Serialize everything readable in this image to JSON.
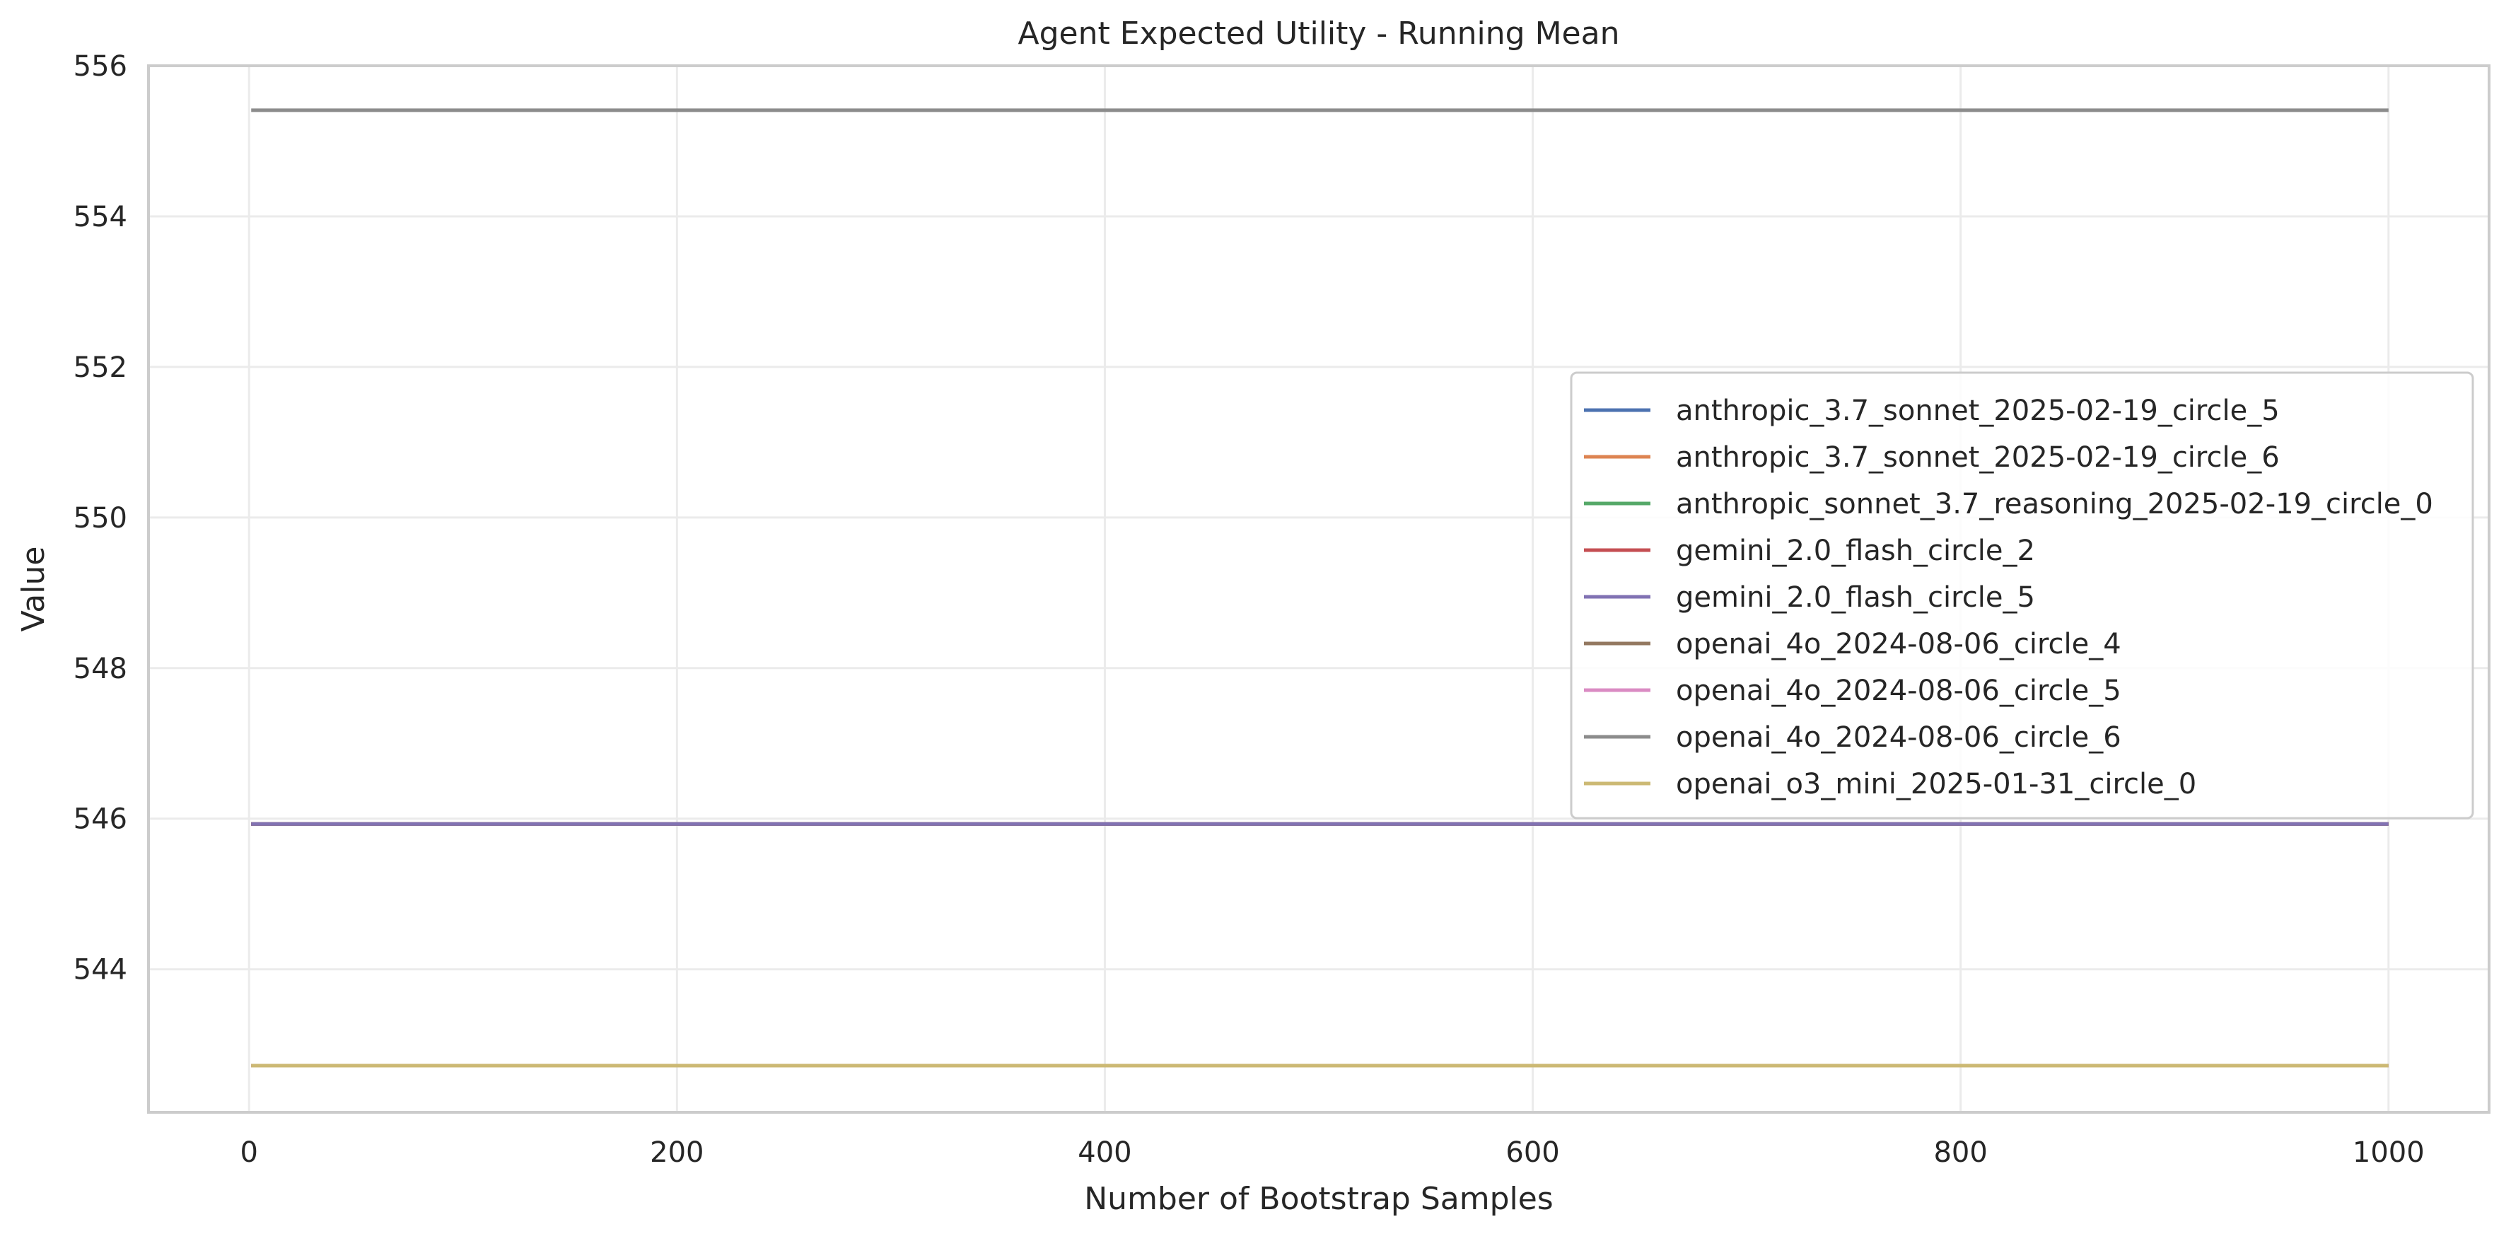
{
  "chart_data": {
    "type": "line",
    "title": "Agent Expected Utility - Running Mean",
    "xlabel": "Number of Bootstrap Samples",
    "ylabel": "Value",
    "xlim": [
      -47,
      1047
    ],
    "ylim": [
      542.1,
      556.0
    ],
    "xticks": [
      0,
      200,
      400,
      600,
      800,
      1000
    ],
    "yticks": [
      544,
      546,
      548,
      550,
      552,
      554,
      556
    ],
    "grid": true,
    "legend_position": "center-right",
    "series": [
      {
        "name": "anthropic_3.7_sonnet_2025-02-19_circle_5",
        "color": "#4c72b0",
        "x": [
          1,
          1000
        ],
        "values": [
          545.93,
          545.93
        ]
      },
      {
        "name": "anthropic_3.7_sonnet_2025-02-19_circle_6",
        "color": "#dd8452",
        "x": [
          1,
          1000
        ],
        "values": [
          545.93,
          545.93
        ]
      },
      {
        "name": "anthropic_sonnet_3.7_reasoning_2025-02-19_circle_0",
        "color": "#55a868",
        "x": [
          1,
          1000
        ],
        "values": [
          545.93,
          545.93
        ]
      },
      {
        "name": "gemini_2.0_flash_circle_2",
        "color": "#c44e52",
        "x": [
          1,
          1000
        ],
        "values": [
          545.93,
          545.93
        ]
      },
      {
        "name": "gemini_2.0_flash_circle_5",
        "color": "#8172b3",
        "x": [
          1,
          1000
        ],
        "values": [
          545.93,
          545.93
        ]
      },
      {
        "name": "openai_4o_2024-08-06_circle_4",
        "color": "#937860",
        "x": [
          1,
          1000
        ],
        "values": [
          542.72,
          542.72
        ]
      },
      {
        "name": "openai_4o_2024-08-06_circle_5",
        "color": "#da8bc3",
        "x": [
          1,
          1000
        ],
        "values": [
          542.72,
          542.72
        ]
      },
      {
        "name": "openai_4o_2024-08-06_circle_6",
        "color": "#8c8c8c",
        "x": [
          1,
          1000
        ],
        "values": [
          555.41,
          555.41
        ]
      },
      {
        "name": "openai_o3_mini_2025-01-31_circle_0",
        "color": "#ccb974",
        "x": [
          1,
          1000
        ],
        "values": [
          542.72,
          542.72
        ]
      }
    ]
  }
}
